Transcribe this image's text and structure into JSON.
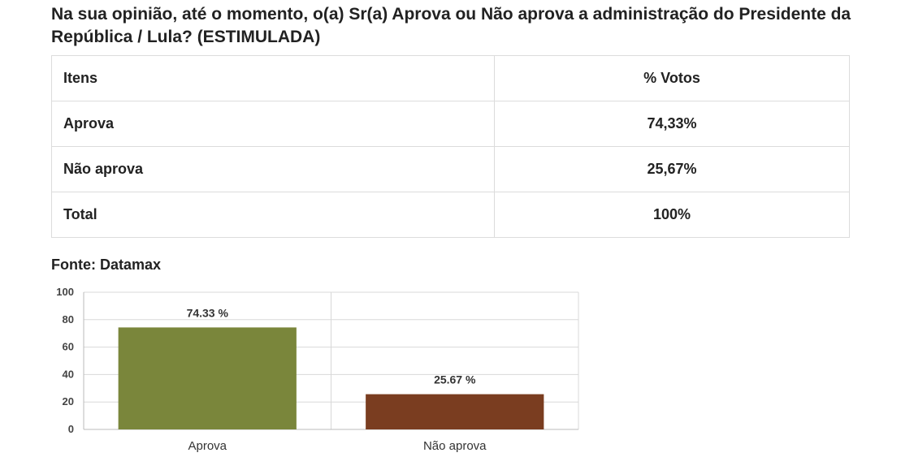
{
  "question": "Na sua opinião, até o momento, o(a) Sr(a) Aprova ou Não aprova a administração do Presidente da República / Lula? (ESTIMULADA)",
  "table": {
    "headers": [
      "Itens",
      "% Votos"
    ],
    "rows": [
      [
        "Aprova",
        "74,33%"
      ],
      [
        "Não aprova",
        "25,67%"
      ],
      [
        "Total",
        "100%"
      ]
    ]
  },
  "source": "Fonte: Datamax",
  "chart_data": {
    "type": "bar",
    "categories": [
      "Aprova",
      "Não aprova"
    ],
    "values": [
      74.33,
      25.67
    ],
    "value_labels": [
      "74.33 %",
      "25.67 %"
    ],
    "colors": [
      "#7a863b",
      "#7a3d20"
    ],
    "yticks": [
      "0",
      "20",
      "40",
      "60",
      "80",
      "100"
    ],
    "ylim": [
      0,
      100
    ],
    "grid": true,
    "legend": "none"
  }
}
